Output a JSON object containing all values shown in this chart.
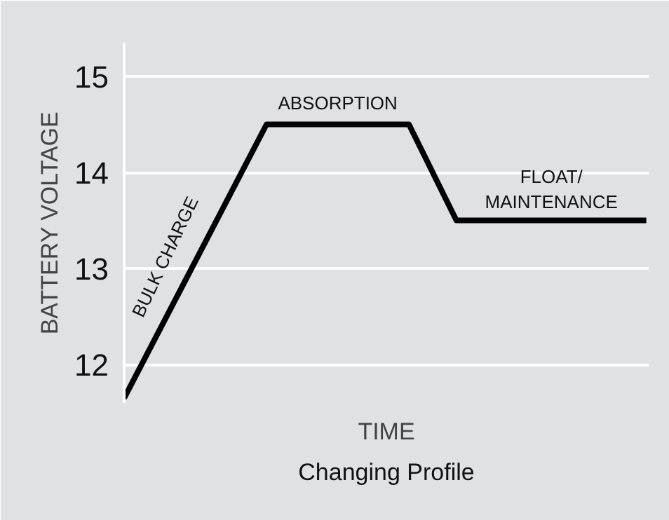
{
  "chart_data": {
    "type": "line",
    "xlabel": "TIME",
    "ylabel": "BATTERY VOLTAGE",
    "categories": [
      null,
      null,
      null,
      null,
      null,
      null,
      null,
      null,
      null,
      null,
      null,
      null
    ],
    "series": [
      {
        "color": "#000000",
        "values": [
          11.65,
          12.6,
          13.55,
          14.5,
          14.5,
          14.5,
          14.5,
          13.5,
          13.5,
          13.5,
          13.5,
          13.5
        ]
      }
    ],
    "ylim": [
      11.6,
      15.35
    ],
    "yticks": [
      12,
      13,
      14,
      15
    ],
    "grid": "y",
    "tick_labels": "y",
    "marker": "none",
    "line_style": "solid",
    "annotations": [
      "BULK CHARGE",
      "ABSORPTION",
      "FLOAT/\nMAINTENANCE",
      "Changing Profile"
    ]
  }
}
